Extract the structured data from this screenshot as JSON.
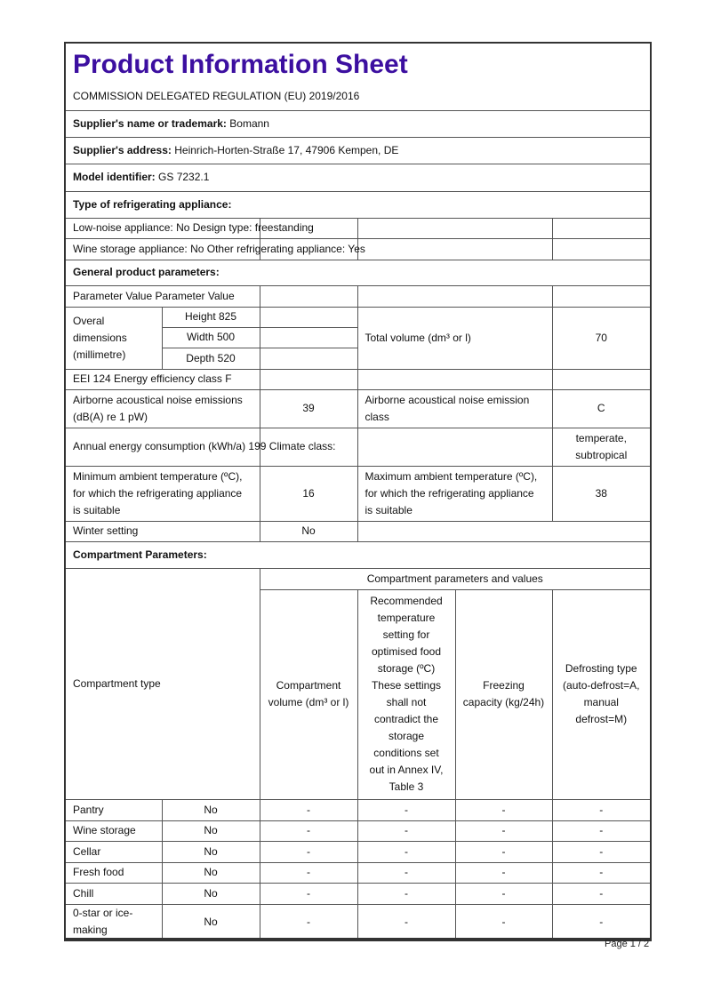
{
  "title": "Product Information Sheet",
  "regulation": "COMMISSION DELEGATED REGULATION (EU) 2019/2016",
  "supplier_name": {
    "label": "Supplier's name or trademark:",
    "value": "Bomann"
  },
  "supplier_address": {
    "label": "Supplier's address:",
    "value": "Heinrich-Horten-Straße 17, 47906 Kempen, DE"
  },
  "model": {
    "label": "Model identifier:",
    "value": "GS 7232.1"
  },
  "type_heading": "Type of refrigerating appliance:",
  "low_noise": "Low-noise appliance: No Design type: freestanding",
  "wine_storage": "Wine storage appliance: No Other refrigerating appliance: Yes",
  "general_heading": "General product parameters:",
  "param_header": "Parameter Value Parameter Value",
  "dimensions": {
    "label": "Overal dimensions (millimetre)",
    "height": "Height 825",
    "width": "Width 500",
    "depth": "Depth 520"
  },
  "total_volume": {
    "label": "Total volume (dm³ or l)",
    "value": "70"
  },
  "eei": "EEI 124 Energy efficiency class F",
  "noise": {
    "label": "Airborne acoustical noise emissions (dB(A) re 1 pW)",
    "value": "39",
    "class_label": "Airborne acoustical noise emission class",
    "class_value": "C"
  },
  "annual": "Annual energy consumption (kWh/a) 199 Climate class:",
  "climate_value": "temperate, subtropical",
  "min_temp": {
    "label": "Minimum ambient temperature (ºC), for which the refrigerating appliance is suitable",
    "value": "16"
  },
  "max_temp": {
    "label": "Maximum ambient temperature (ºC), for which the refrigerating appliance is suitable",
    "value": "38"
  },
  "winter": {
    "label": "Winter setting",
    "value": "No"
  },
  "compartment_heading": "Compartment Parameters:",
  "compartment_type_label": "Compartment type",
  "compartment_params_label": "Compartment parameters and values",
  "col_headers": [
    "Compartment volume (dm³ or l)",
    "Recommended temperature setting for optimised food storage (ºC) These settings shall not contradict the storage conditions set out in Annex IV, Table 3",
    "Freezing capacity (kg/24h)",
    "Defrosting type (auto-defrost=A, manual defrost=M)"
  ],
  "compartments": [
    {
      "name": "Pantry",
      "present": "No",
      "values": [
        "-",
        "-",
        "-",
        "-"
      ]
    },
    {
      "name": "Wine storage",
      "present": "No",
      "values": [
        "-",
        "-",
        "-",
        "-"
      ]
    },
    {
      "name": "Cellar",
      "present": "No",
      "values": [
        "-",
        "-",
        "-",
        "-"
      ]
    },
    {
      "name": "Fresh food",
      "present": "No",
      "values": [
        "-",
        "-",
        "-",
        "-"
      ]
    },
    {
      "name": "Chill",
      "present": "No",
      "values": [
        "-",
        "-",
        "-",
        "-"
      ]
    },
    {
      "name": "0-star or ice-making",
      "present": "No",
      "values": [
        "-",
        "-",
        "-",
        "-"
      ]
    }
  ],
  "footer": "Page 1 / 2"
}
